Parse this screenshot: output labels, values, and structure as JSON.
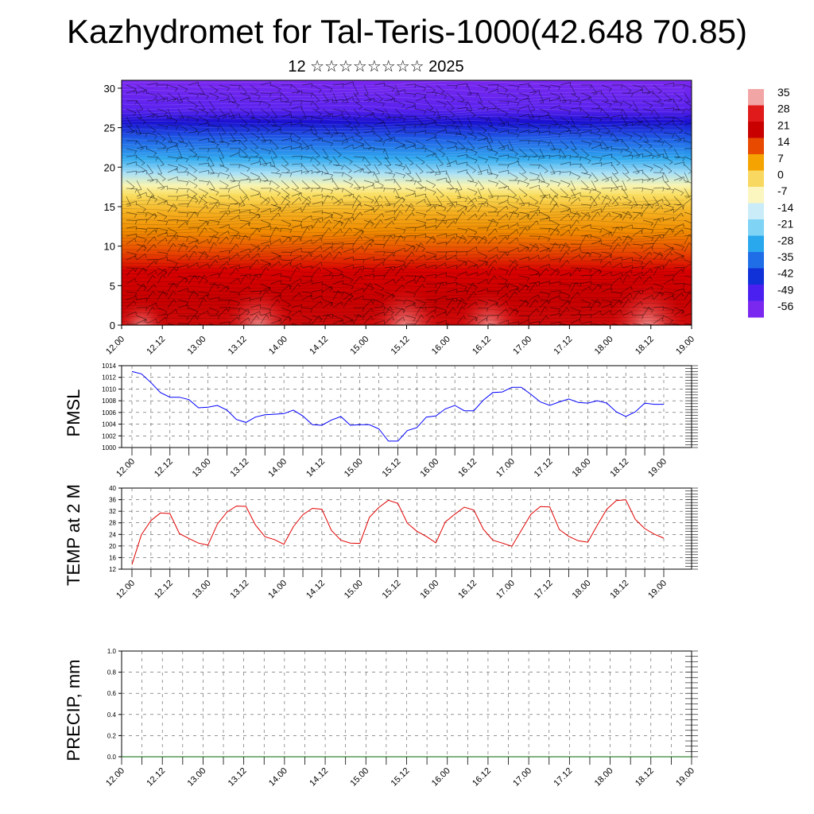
{
  "page": {
    "title": "Kazhydromet for Tal-Teris-1000(42.648 70.85)",
    "subtitle": "12 ☆☆☆☆☆☆☆☆ 2025"
  },
  "chart_data": [
    {
      "type": "heatmap",
      "xlabel": "",
      "ylabel": "",
      "x_tick_labels": [
        "12.00",
        "12.12",
        "13.00",
        "13.12",
        "14.00",
        "14.12",
        "15.00",
        "15.12",
        "16.00",
        "16.12",
        "17.00",
        "17.12",
        "18.00",
        "18.12",
        "19.00"
      ],
      "ylim": [
        0,
        31
      ],
      "y_ticks": [
        0,
        5,
        10,
        15,
        20,
        25,
        30
      ],
      "colorbar": {
        "labels": [
          "35",
          "28",
          "21",
          "14",
          "7",
          "0",
          "-7",
          "-14",
          "-21",
          "-28",
          "-35",
          "-42",
          "-49",
          "-56"
        ],
        "colors": [
          "#f2a5a5",
          "#e01a1a",
          "#c80000",
          "#e84a00",
          "#f5a300",
          "#f8d860",
          "#fbf6c0",
          "#c9ecf8",
          "#7fd3f5",
          "#2aa8ee",
          "#1f6ee8",
          "#1030d8",
          "#4a20f0",
          "#7a28ef"
        ]
      },
      "field": {
        "levels_top_to_bottom": [
          -56,
          -49,
          -42,
          -35,
          -28,
          -21,
          -14,
          -7,
          0,
          7,
          14,
          21,
          28
        ],
        "overlay": "wind barbs and contours"
      }
    },
    {
      "type": "line",
      "ylabel": "PMSL",
      "xlabel": "",
      "ylim": [
        1000,
        1014
      ],
      "y_ticks": [
        1000,
        1002,
        1004,
        1006,
        1008,
        1010,
        1012,
        1014
      ],
      "x_tick_labels": [
        "12.00",
        "12.12",
        "13.00",
        "13.12",
        "14.00",
        "14.12",
        "15.00",
        "15.12",
        "16.00",
        "16.12",
        "17.00",
        "17.12",
        "18.00",
        "18.12",
        "19.00"
      ],
      "color": "#0000ff",
      "series": [
        {
          "values": [
            1013.0,
            1012.6,
            1011.1,
            1009.4,
            1008.6,
            1008.6,
            1008.2,
            1006.8,
            1006.9,
            1007.2,
            1006.4,
            1004.8,
            1004.3,
            1005.2,
            1005.6,
            1005.7,
            1005.8,
            1006.4,
            1005.4,
            1003.9,
            1003.8,
            1004.7,
            1005.3,
            1003.8,
            1003.9,
            1003.9,
            1003.2,
            1001.1,
            1001.1,
            1002.9,
            1003.4,
            1005.2,
            1005.4,
            1006.6,
            1007.2,
            1006.3,
            1006.3,
            1008.1,
            1009.4,
            1009.5,
            1010.3,
            1010.3,
            1009.1,
            1007.8,
            1007.2,
            1007.8,
            1008.3,
            1007.7,
            1007.6,
            1008.0,
            1007.6,
            1006.1,
            1005.3,
            1006.1,
            1007.6,
            1007.4,
            1007.4
          ]
        }
      ]
    },
    {
      "type": "line",
      "ylabel": "TEMP at 2 M",
      "xlabel": "",
      "ylim": [
        12,
        40
      ],
      "y_ticks": [
        12,
        16,
        20,
        24,
        28,
        32,
        36,
        40
      ],
      "x_tick_labels": [
        "12.00",
        "12.12",
        "13.00",
        "13.12",
        "14.00",
        "14.12",
        "15.00",
        "15.12",
        "16.00",
        "16.12",
        "17.00",
        "17.12",
        "18.00",
        "18.12",
        "19.00"
      ],
      "color": "#e00000",
      "series": [
        {
          "values": [
            13.6,
            23.9,
            28.8,
            31.4,
            31.2,
            24.3,
            22.6,
            21.0,
            20.3,
            27.6,
            31.7,
            33.8,
            33.7,
            27.3,
            23.2,
            22.2,
            20.6,
            26.7,
            30.8,
            33.0,
            32.7,
            25.4,
            22.0,
            21.0,
            20.9,
            29.9,
            33.3,
            35.8,
            34.7,
            27.9,
            25.1,
            23.3,
            21.1,
            28.3,
            31.0,
            33.4,
            32.4,
            25.8,
            22.0,
            21.0,
            19.9,
            25.4,
            30.9,
            33.6,
            33.5,
            25.7,
            23.3,
            21.8,
            21.3,
            27.2,
            32.7,
            35.7,
            36.0,
            29.2,
            26.0,
            24.1,
            22.7
          ]
        }
      ]
    },
    {
      "type": "line",
      "ylabel": "PRECIP, mm",
      "xlabel": "",
      "ylim": [
        0,
        1
      ],
      "y_tick_labels": [
        "0.0",
        "0.2",
        "0.4",
        "0.6",
        "0.8",
        "1.0"
      ],
      "x_tick_labels": [
        "12.00",
        "12.12",
        "13.00",
        "13.12",
        "14.00",
        "14.12",
        "15.00",
        "15.12",
        "16.00",
        "16.12",
        "17.00",
        "17.12",
        "18.00",
        "18.12",
        "19.00"
      ],
      "color": "#006400",
      "series": [
        {
          "values": [
            0,
            0,
            0,
            0,
            0,
            0,
            0,
            0,
            0,
            0,
            0,
            0,
            0,
            0,
            0,
            0,
            0,
            0,
            0,
            0,
            0,
            0,
            0,
            0,
            0,
            0,
            0,
            0,
            0,
            0,
            0,
            0,
            0,
            0,
            0,
            0,
            0,
            0,
            0,
            0,
            0,
            0,
            0,
            0,
            0,
            0,
            0,
            0,
            0,
            0,
            0,
            0,
            0,
            0,
            0,
            0,
            0,
            0,
            0,
            0,
            0,
            0,
            0,
            0,
            0,
            0,
            0,
            0,
            0,
            0,
            0,
            0,
            0,
            0,
            0,
            0,
            0,
            0,
            0,
            0,
            0,
            0,
            0,
            0,
            0
          ]
        }
      ]
    }
  ]
}
